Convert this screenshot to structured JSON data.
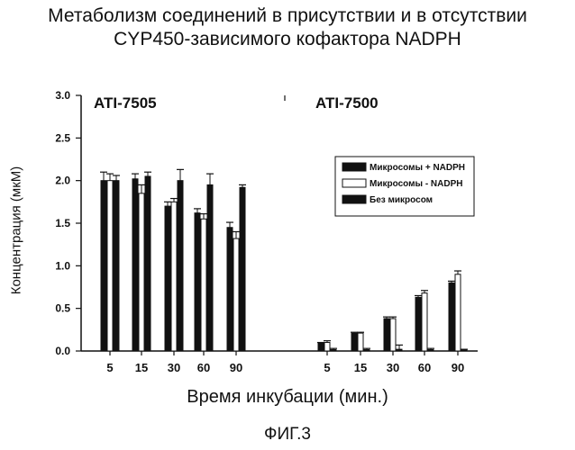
{
  "title_line1": "Метаболизм соединений в присутствии и в отсутствии",
  "title_line2": "CYP450-зависимого кофактора NADPH",
  "xlabel": "Время инкубации (мин.)",
  "ylabel": "Концентрация (мкМ)",
  "figure_label": "ФИГ.3",
  "colors": {
    "black": "#111111",
    "white": "#ffffff",
    "axis": "#111111"
  },
  "chart_data": {
    "type": "bar",
    "ylim": [
      0,
      3.0
    ],
    "yticks": [
      "0.0",
      "0.5",
      "1.0",
      "1.5",
      "2.0",
      "2.5",
      "3.0"
    ],
    "ytick_values": [
      0,
      0.5,
      1.0,
      1.5,
      2.0,
      2.5,
      3.0
    ],
    "categories": [
      "5",
      "15",
      "30",
      "60",
      "90"
    ],
    "legend": {
      "placement": "upper-right of right panel",
      "entries": [
        "Микросомы + NADPH",
        "Микросомы - NADPH",
        "Без микросом"
      ]
    },
    "panels": [
      {
        "title": "ATI-7505",
        "series": [
          {
            "name": "Микросомы + NADPH",
            "fill": "black",
            "values": [
              2.0,
              2.02,
              1.7,
              1.62,
              1.45
            ],
            "errors": [
              0.1,
              0.06,
              0.05,
              0.05,
              0.06
            ]
          },
          {
            "name": "Микросомы - NADPH",
            "fill": "white",
            "values": [
              2.0,
              1.85,
              1.75,
              1.55,
              1.32
            ],
            "errors": [
              0.08,
              0.1,
              0.04,
              0.06,
              0.08
            ]
          },
          {
            "name": "Без микросом",
            "fill": "black",
            "values": [
              2.0,
              2.05,
              2.0,
              1.95,
              1.92
            ],
            "errors": [
              0.06,
              0.05,
              0.13,
              0.13,
              0.03
            ]
          }
        ]
      },
      {
        "title": "ATI-7500",
        "series": [
          {
            "name": "Микросомы + NADPH",
            "fill": "black",
            "values": [
              0.09,
              0.21,
              0.38,
              0.63,
              0.8
            ],
            "errors": [
              0.01,
              0.01,
              0.02,
              0.02,
              0.02
            ]
          },
          {
            "name": "Микросомы - NADPH",
            "fill": "white",
            "values": [
              0.1,
              0.21,
              0.38,
              0.68,
              0.9
            ],
            "errors": [
              0.02,
              0.01,
              0.02,
              0.03,
              0.04
            ]
          },
          {
            "name": "Без микросом",
            "fill": "black",
            "values": [
              0.01,
              0.01,
              0.02,
              0.01,
              0.01
            ],
            "errors": [
              0.02,
              0.02,
              0.05,
              0.02,
              0.01
            ]
          }
        ]
      }
    ]
  }
}
